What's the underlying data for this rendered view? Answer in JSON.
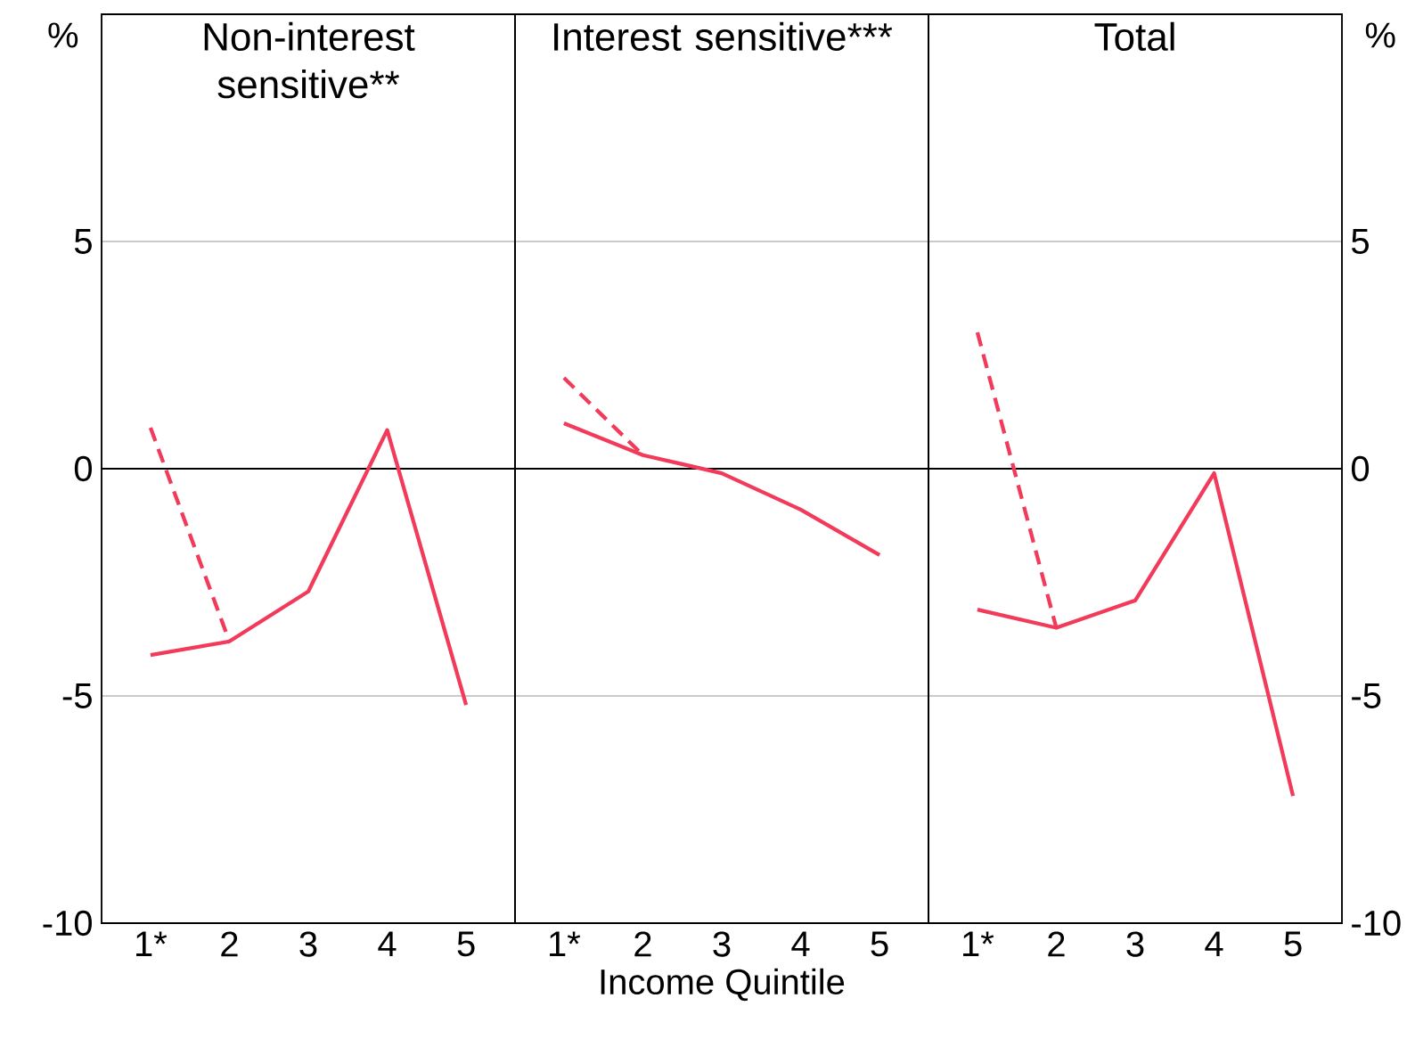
{
  "chart_data": [
    {
      "type": "line",
      "title": "Non-interest sensitive**",
      "ylabel": "%",
      "categories": [
        "1*",
        "2",
        "3",
        "4",
        "5"
      ],
      "series": [
        {
          "color": "#f23a5a",
          "values": [
            -4.1,
            -3.8,
            -2.7,
            0.85,
            -5.2
          ]
        },
        {
          "color": "#f23a5a",
          "line_style": "dashed",
          "values": [
            0.9,
            -3.8,
            null,
            null,
            null
          ]
        }
      ],
      "ylim": [
        -10,
        10
      ],
      "yticks": [
        -10,
        -5,
        0,
        5
      ],
      "grid": "y",
      "ref_lines": [
        {
          "axis": "y",
          "value": 0,
          "color": "#000000"
        }
      ]
    },
    {
      "type": "line",
      "title": "Interest sensitive***",
      "xlabel": "Income Quintile",
      "categories": [
        "1*",
        "2",
        "3",
        "4",
        "5"
      ],
      "series": [
        {
          "color": "#f23a5a",
          "values": [
            1.0,
            0.3,
            -0.1,
            -0.9,
            -1.9
          ]
        },
        {
          "color": "#f23a5a",
          "line_style": "dashed",
          "values": [
            2.0,
            0.3,
            null,
            null,
            null
          ]
        }
      ],
      "ylim": [
        -10,
        10
      ],
      "yticks": [
        -10,
        -5,
        0,
        5
      ],
      "grid": "y",
      "tick_labels": "x",
      "ref_lines": [
        {
          "axis": "y",
          "value": 0,
          "color": "#000000"
        }
      ]
    },
    {
      "type": "line",
      "title": "Total",
      "ylabel": "%",
      "categories": [
        "1*",
        "2",
        "3",
        "4",
        "5"
      ],
      "series": [
        {
          "color": "#f23a5a",
          "values": [
            -3.1,
            -3.5,
            -2.9,
            -0.1,
            -7.2
          ]
        },
        {
          "color": "#f23a5a",
          "line_style": "dashed",
          "values": [
            3.0,
            -3.5,
            null,
            null,
            null
          ]
        }
      ],
      "ylim": [
        -10,
        10
      ],
      "yticks": [
        -10,
        -5,
        0,
        5
      ],
      "grid": "y",
      "ref_lines": [
        {
          "axis": "y",
          "value": 0,
          "color": "#000000"
        }
      ]
    }
  ]
}
